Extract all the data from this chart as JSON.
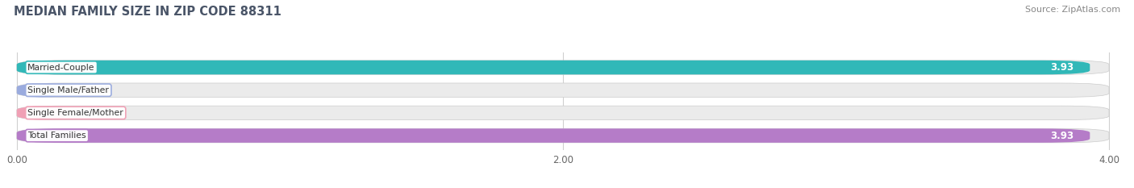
{
  "title": "MEDIAN FAMILY SIZE IN ZIP CODE 88311",
  "source": "Source: ZipAtlas.com",
  "categories": [
    "Married-Couple",
    "Single Male/Father",
    "Single Female/Mother",
    "Total Families"
  ],
  "values": [
    3.93,
    0.0,
    0.0,
    3.93
  ],
  "bar_colors": [
    "#31b8b8",
    "#9aabde",
    "#f0a0b5",
    "#b57cc8"
  ],
  "xlim": [
    0,
    4.0
  ],
  "xticks": [
    0.0,
    2.0,
    4.0
  ],
  "xtick_labels": [
    "0.00",
    "2.00",
    "4.00"
  ],
  "bar_height": 0.62,
  "background_color": "#ffffff",
  "bar_bg_color": "#ebebeb",
  "title_color": "#4a5568",
  "source_color": "#888888",
  "figsize": [
    14.06,
    2.33
  ],
  "dpi": 100
}
